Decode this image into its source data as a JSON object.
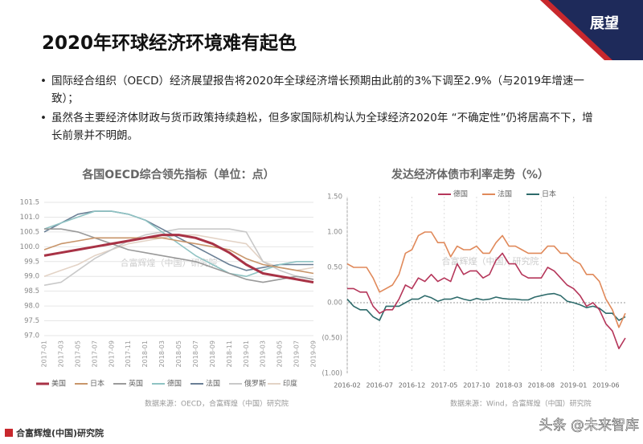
{
  "header": {
    "title": "2020年环球经济环境难有起色",
    "badge": "展望"
  },
  "bullets": [
    "国际经合组织（OECD）经济展望报告将2020年全球经济增长预期由此前的3%下调至2.9%（与2019年增速一致）；",
    "虽然各主要经济体财政与货币政策持续趋松，但多家国际机构认为全球经济2020年 “不确定性”仍将居高不下，增长前景并不明朗。"
  ],
  "footer": {
    "logo": "合富辉煌(中国)研究院",
    "watermark": "头条 @未来智库"
  },
  "chart_data": [
    {
      "type": "line",
      "title": "各国OECD综合领先指标（单位：点）",
      "watermark": "合富辉煌（中国）研究院",
      "source": "数据来源：OECD，合富辉煌（中国）研究院",
      "categories": [
        "2017-01",
        "2017-03",
        "2017-05",
        "2017-07",
        "2017-09",
        "2017-11",
        "2018-01",
        "2018-03",
        "2018-05",
        "2018-07",
        "2018-09",
        "2018-11",
        "2019-01",
        "2019-03",
        "2019-05",
        "2019-07",
        "2019-09"
      ],
      "ylim": [
        97,
        101.5
      ],
      "yticks": [
        {
          "value": 97,
          "label": "97.0"
        },
        97.5,
        {
          "value": 98,
          "label": "98.0"
        },
        98.5,
        {
          "value": 99,
          "label": "99.0"
        },
        99.5,
        {
          "value": 100,
          "label": "100.0"
        },
        100.5,
        {
          "value": 101,
          "label": "101.0"
        },
        101.5
      ],
      "grid": true,
      "series": [
        {
          "name": "美国",
          "color": "#a83245",
          "values": [
            99.7,
            99.8,
            99.9,
            100.0,
            100.1,
            100.2,
            100.3,
            100.4,
            100.4,
            100.3,
            100.1,
            99.8,
            99.4,
            99.1,
            99.0,
            98.9,
            98.8
          ]
        },
        {
          "name": "日本",
          "color": "#c8956a",
          "values": [
            99.9,
            100.1,
            100.2,
            100.3,
            100.3,
            100.3,
            100.3,
            100.3,
            100.2,
            100.1,
            100.0,
            99.9,
            99.6,
            99.4,
            99.3,
            99.2,
            99.1
          ]
        },
        {
          "name": "英国",
          "color": "#9a9a9a",
          "values": [
            100.6,
            100.6,
            100.5,
            100.3,
            100.1,
            99.9,
            99.8,
            99.7,
            99.6,
            99.5,
            99.3,
            99.1,
            98.9,
            98.8,
            98.9,
            99.0,
            98.9
          ]
        },
        {
          "name": "德国",
          "color": "#8fc3c3",
          "values": [
            100.6,
            100.8,
            101.0,
            101.2,
            101.2,
            101.1,
            100.9,
            100.5,
            100.1,
            99.7,
            99.4,
            99.1,
            99.0,
            99.2,
            99.4,
            99.5,
            99.5
          ]
        },
        {
          "name": "法国",
          "color": "#6a7f95",
          "values": [
            100.5,
            100.8,
            101.1,
            101.2,
            101.2,
            101.1,
            100.9,
            100.6,
            100.3,
            100.0,
            99.7,
            99.4,
            99.2,
            99.3,
            99.4,
            99.4,
            99.4
          ]
        },
        {
          "name": "俄罗斯",
          "color": "#c9c9c9",
          "values": [
            98.7,
            98.8,
            99.2,
            99.6,
            99.9,
            100.2,
            100.4,
            100.5,
            100.6,
            100.6,
            100.6,
            100.6,
            100.5,
            99.5,
            99.2,
            99.0,
            98.9
          ]
        },
        {
          "name": "印度",
          "color": "#e3d3c6",
          "values": [
            99.0,
            99.2,
            99.4,
            99.7,
            99.9,
            100.1,
            100.2,
            100.3,
            100.4,
            100.4,
            100.3,
            100.2,
            100.1,
            99.5,
            99.3,
            99.2,
            99.3
          ]
        }
      ]
    },
    {
      "type": "line",
      "title": "发达经济体债市利率走势（%）",
      "watermark": "合富辉煌（中国）研究院",
      "source": "数据来源：Wind，合富辉煌（中国）研究院",
      "categories": [
        "2016-02",
        null,
        null,
        null,
        null,
        "2016-07",
        null,
        null,
        null,
        null,
        "2016-12",
        null,
        null,
        null,
        null,
        "2017-05",
        null,
        null,
        null,
        null,
        "2017-10",
        null,
        null,
        null,
        null,
        "2018-03",
        null,
        null,
        null,
        null,
        "2018-08",
        null,
        null,
        null,
        null,
        "2019-01",
        null,
        null,
        null,
        null,
        "2019-06",
        null,
        null,
        null
      ],
      "ylim": [
        -1,
        1.5
      ],
      "yticks": [
        {
          "value": -1,
          "label": "(1.00)"
        },
        {
          "value": -0.5,
          "label": "(0.50)"
        },
        {
          "value": 0,
          "label": "0.00"
        },
        {
          "value": 0.5,
          "label": "0.50"
        },
        {
          "value": 1,
          "label": "1.00"
        },
        {
          "value": 1.5,
          "label": "1.50"
        }
      ],
      "grid": false,
      "series": [
        {
          "name": "德国",
          "color": "#b5365a",
          "values": [
            0.2,
            0.2,
            0.15,
            0.15,
            -0.05,
            -0.15,
            -0.1,
            -0.1,
            0.05,
            0.25,
            0.2,
            0.35,
            0.3,
            0.4,
            0.3,
            0.35,
            0.3,
            0.55,
            0.4,
            0.45,
            0.45,
            0.35,
            0.4,
            0.6,
            0.7,
            0.55,
            0.55,
            0.4,
            0.35,
            0.35,
            0.35,
            0.5,
            0.45,
            0.35,
            0.25,
            0.2,
            0.1,
            -0.05,
            0.0,
            -0.1,
            -0.3,
            -0.4,
            -0.65,
            -0.5
          ]
        },
        {
          "name": "法国",
          "color": "#e0895a",
          "values": [
            0.55,
            0.5,
            0.5,
            0.5,
            0.35,
            0.15,
            0.2,
            0.25,
            0.4,
            0.7,
            0.75,
            0.95,
            1.0,
            1.0,
            0.85,
            0.85,
            0.65,
            0.8,
            0.75,
            0.75,
            0.8,
            0.7,
            0.7,
            0.85,
            0.95,
            0.8,
            0.8,
            0.75,
            0.7,
            0.7,
            0.7,
            0.8,
            0.8,
            0.7,
            0.7,
            0.6,
            0.55,
            0.4,
            0.4,
            0.3,
            0.05,
            -0.1,
            -0.35,
            -0.15
          ]
        },
        {
          "name": "日本",
          "color": "#2e6b6b",
          "values": [
            0.05,
            -0.05,
            -0.1,
            -0.1,
            -0.2,
            -0.25,
            -0.05,
            -0.05,
            -0.05,
            0.0,
            0.05,
            0.05,
            0.1,
            0.07,
            0.02,
            0.05,
            0.05,
            0.08,
            0.05,
            0.03,
            0.06,
            0.04,
            0.05,
            0.08,
            0.06,
            0.05,
            0.05,
            0.04,
            0.04,
            0.08,
            0.1,
            0.12,
            0.13,
            0.1,
            0.02,
            0.0,
            -0.03,
            -0.07,
            -0.05,
            -0.08,
            -0.15,
            -0.15,
            -0.25,
            -0.2
          ]
        }
      ]
    }
  ]
}
